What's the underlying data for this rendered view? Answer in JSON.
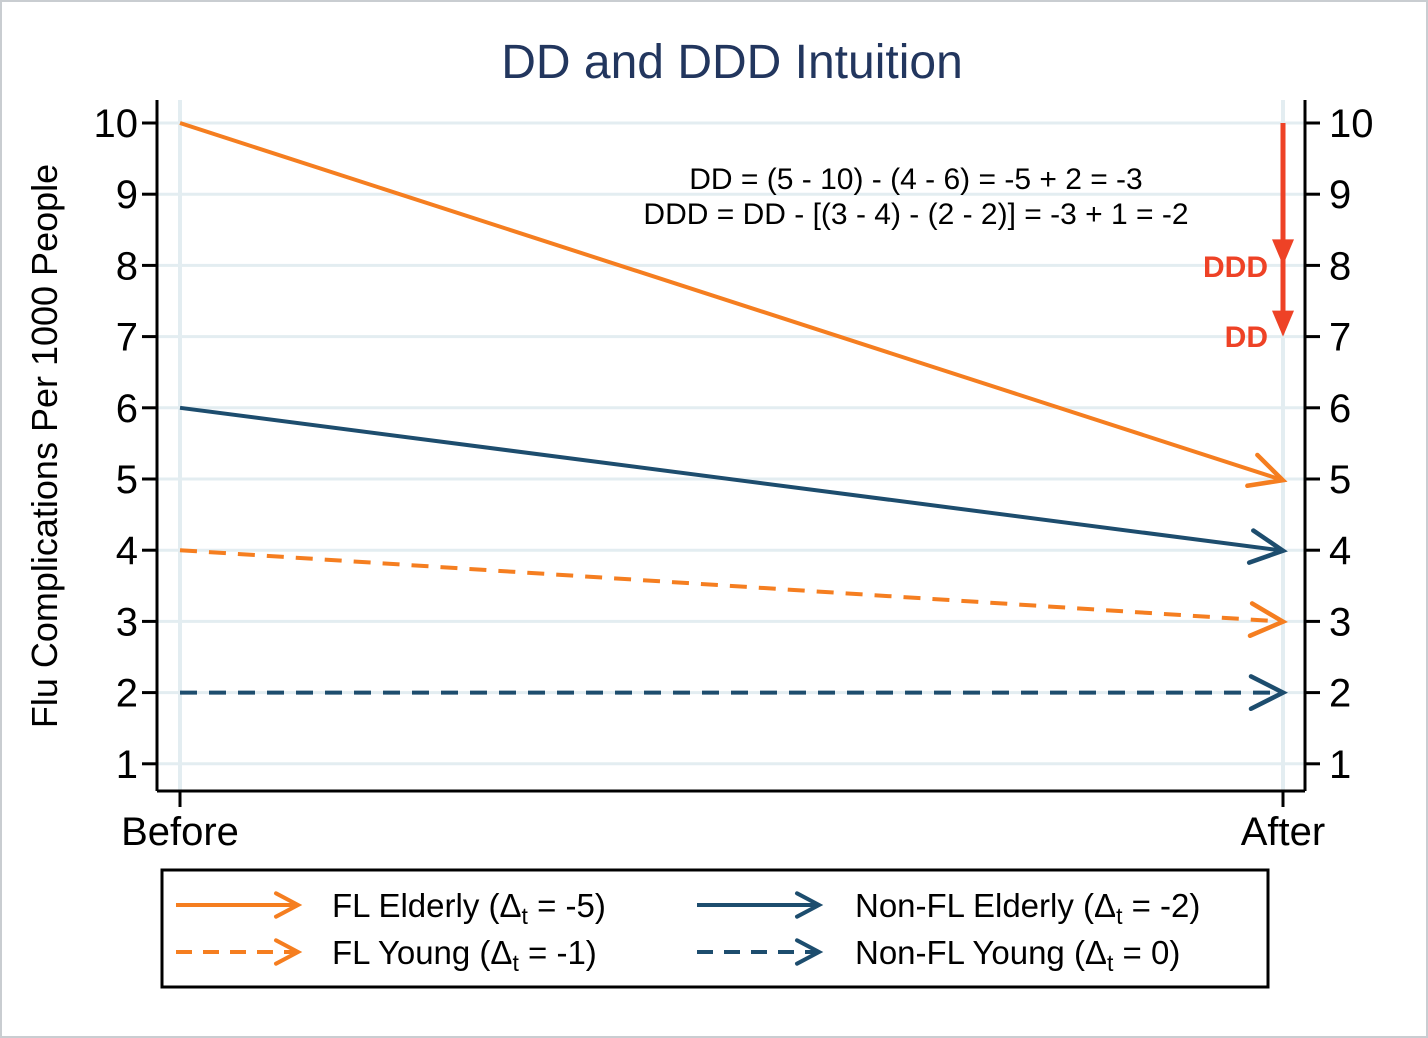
{
  "colors": {
    "orange": "#f57e20",
    "navy": "#1d4d6e",
    "red": "#ee4226",
    "title_navy": "#22365e",
    "grid": "#e3edf1",
    "axis": "#000000",
    "legend_border": "#000000",
    "frame_border": "#c9cdd1",
    "background": "#ffffff"
  },
  "chart_data": {
    "type": "line",
    "title": "DD and DDD Intuition",
    "xlabel": "",
    "ylabel": "Flu Complications Per 1000 People",
    "categories": [
      "Before",
      "After"
    ],
    "y_ticks": [
      1,
      2,
      3,
      4,
      5,
      6,
      7,
      8,
      9,
      10
    ],
    "ylim": [
      0.6,
      10.3
    ],
    "grid": "on",
    "legend_position": "bottom",
    "series": [
      {
        "name": "FL Elderly (Δt = -5)",
        "label_pre": "FL Elderly (Δ",
        "label_sub": "t",
        "label_post": " = -5)",
        "values": [
          10,
          5
        ],
        "line": "solid",
        "color_key": "orange"
      },
      {
        "name": "Non-FL Elderly (Δt = -2)",
        "label_pre": "Non-FL Elderly (Δ",
        "label_sub": "t",
        "label_post": " = -2)",
        "values": [
          6,
          4
        ],
        "line": "solid",
        "color_key": "navy"
      },
      {
        "name": "FL Young (Δt = -1)",
        "label_pre": "FL Young (Δ",
        "label_sub": "t",
        "label_post": " = -1)",
        "values": [
          4,
          3
        ],
        "line": "dashed",
        "color_key": "orange"
      },
      {
        "name": "Non-FL Young (Δt = 0)",
        "label_pre": "Non-FL Young (Δ",
        "label_sub": "t",
        "label_post": " = 0)",
        "values": [
          2,
          2
        ],
        "line": "dashed",
        "color_key": "navy"
      }
    ],
    "annotations": [
      "DD = (5 - 10) - (4 - 6) = -5 + 2 = -3",
      "DDD = DD - [(3 - 4) - (2 - 2)] = -3 + 1 = -2"
    ],
    "dd_arrows": [
      {
        "label": "DDD",
        "from": 10,
        "to": 8
      },
      {
        "label": "DD",
        "from": 10,
        "to": 7
      }
    ]
  }
}
